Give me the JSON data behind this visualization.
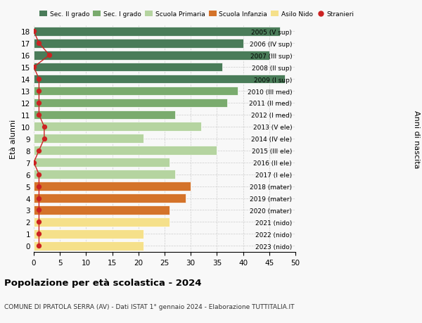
{
  "ages": [
    18,
    17,
    16,
    15,
    14,
    13,
    12,
    11,
    10,
    9,
    8,
    7,
    6,
    5,
    4,
    3,
    2,
    1,
    0
  ],
  "right_labels": [
    "2005 (V sup)",
    "2006 (IV sup)",
    "2007 (III sup)",
    "2008 (II sup)",
    "2009 (I sup)",
    "2010 (III med)",
    "2011 (II med)",
    "2012 (I med)",
    "2013 (V ele)",
    "2014 (IV ele)",
    "2015 (III ele)",
    "2016 (II ele)",
    "2017 (I ele)",
    "2018 (mater)",
    "2019 (mater)",
    "2020 (mater)",
    "2021 (nido)",
    "2022 (nido)",
    "2023 (nido)"
  ],
  "bar_values": [
    47,
    40,
    45,
    36,
    48,
    39,
    37,
    27,
    32,
    21,
    35,
    26,
    27,
    30,
    29,
    26,
    26,
    21,
    21
  ],
  "bar_colors": [
    "#4a7c59",
    "#4a7c59",
    "#4a7c59",
    "#4a7c59",
    "#4a7c59",
    "#7aab6e",
    "#7aab6e",
    "#7aab6e",
    "#b5d4a0",
    "#b5d4a0",
    "#b5d4a0",
    "#b5d4a0",
    "#b5d4a0",
    "#d4732a",
    "#d4732a",
    "#d4732a",
    "#f5e08a",
    "#f5e08a",
    "#f5e08a"
  ],
  "stranieri_values": [
    0,
    1,
    3,
    0,
    1,
    1,
    1,
    1,
    2,
    2,
    1,
    0,
    1,
    1,
    1,
    1,
    1,
    1,
    1
  ],
  "title": "Popolazione per età scolastica - 2024",
  "subtitle": "COMUNE DI PRATOLA SERRA (AV) - Dati ISTAT 1° gennaio 2024 - Elaborazione TUTTITALIA.IT",
  "ylabel": "Età alunni",
  "xlabel_right": "Anni di nascita",
  "xlim": [
    0,
    50
  ],
  "xticks": [
    0,
    5,
    10,
    15,
    20,
    25,
    30,
    35,
    40,
    45,
    50
  ],
  "legend_labels": [
    "Sec. II grado",
    "Sec. I grado",
    "Scuola Primaria",
    "Scuola Infanzia",
    "Asilo Nido",
    "Stranieri"
  ],
  "legend_colors": [
    "#4a7c59",
    "#7aab6e",
    "#b5d4a0",
    "#d4732a",
    "#f5e08a",
    "#cc2222"
  ],
  "background_color": "#f8f8f8",
  "grid_color": "#cccccc",
  "bar_height": 0.75,
  "stranieri_color": "#cc2222",
  "stranieri_line_color": "#cc2222"
}
